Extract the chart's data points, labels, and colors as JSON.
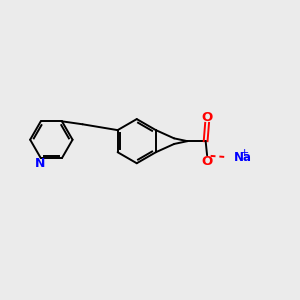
{
  "bg_color": "#ebebeb",
  "bond_color": "#000000",
  "N_color": "#0000ff",
  "O_color": "#ff0000",
  "Na_color": "#0000ff",
  "line_width": 1.4,
  "figsize": [
    3.0,
    3.0
  ],
  "dpi": 100,
  "xlim": [
    0,
    10
  ],
  "ylim": [
    0,
    10
  ]
}
